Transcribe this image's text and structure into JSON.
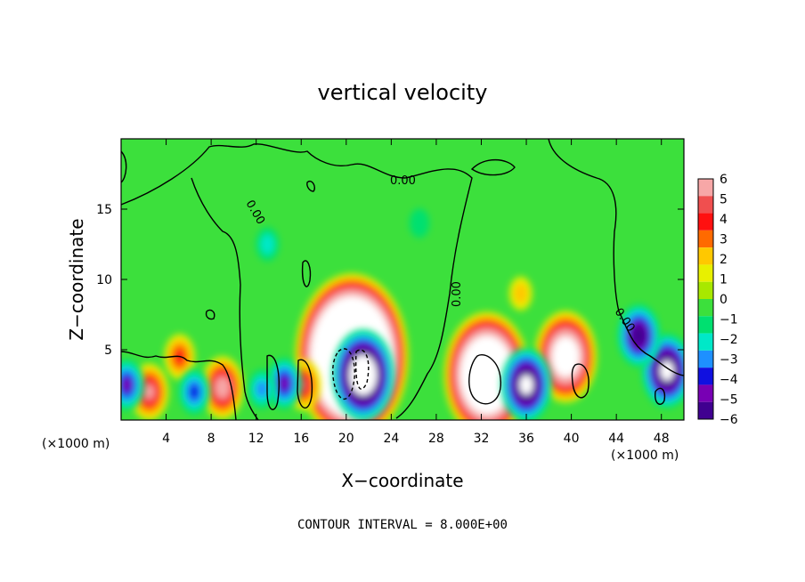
{
  "chart_data": {
    "type": "heatmap",
    "title": "vertical velocity",
    "xlabel": "X−coordinate",
    "ylabel": "Z−coordinate",
    "x_unit": "(×1000 m)",
    "x_unit_right": "(×1000 m)",
    "xlim": [
      0,
      50
    ],
    "ylim": [
      0,
      20
    ],
    "x_ticks": [
      4,
      8,
      12,
      16,
      20,
      24,
      28,
      32,
      36,
      40,
      44,
      48
    ],
    "y_ticks": [
      5,
      10,
      15
    ],
    "colorbar": {
      "labels": [
        "6",
        "5",
        "4",
        "3",
        "2",
        "1",
        "0",
        "−1",
        "−2",
        "−3",
        "−4",
        "−5",
        "−6"
      ],
      "levels": [
        6,
        5,
        4,
        3,
        2,
        1,
        0,
        -1,
        -2,
        -3,
        -4,
        -5,
        -6
      ],
      "colors": [
        "#f7a7a7",
        "#f04f4f",
        "#ff1010",
        "#ff6a00",
        "#ffc800",
        "#e8f000",
        "#a8e800",
        "#3ce03c",
        "#00e070",
        "#00e8c8",
        "#1e90ff",
        "#1010e0",
        "#7800b4",
        "#400090"
      ]
    },
    "contour_labels": [
      "0.00",
      "0.00",
      "0.00",
      "0.00"
    ],
    "footer": "CONTOUR INTERVAL = 8.000E+00",
    "features": [
      {
        "x": 20.5,
        "z": 4.5,
        "w": 25
      },
      {
        "x": 32.5,
        "z": 3.2,
        "w": 18
      },
      {
        "x": 39.5,
        "z": 4.5,
        "w": 12
      },
      {
        "x": 21.5,
        "z": 3.2,
        "w": -12
      },
      {
        "x": 36,
        "z": 2.5,
        "w": -9
      },
      {
        "x": 48.5,
        "z": 3.5,
        "w": -9
      },
      {
        "x": 46,
        "z": 6,
        "w": -7
      },
      {
        "x": 2.5,
        "z": 2,
        "w": 6
      },
      {
        "x": 9,
        "z": 2.3,
        "w": 7
      },
      {
        "x": 16.2,
        "z": 2.5,
        "w": 5
      },
      {
        "x": 5.2,
        "z": 4.5,
        "w": 4
      },
      {
        "x": 14.5,
        "z": 2.6,
        "w": -5
      },
      {
        "x": 12.5,
        "z": 2.2,
        "w": -3
      },
      {
        "x": 0.5,
        "z": 2.5,
        "w": -5
      },
      {
        "x": 6.5,
        "z": 2,
        "w": -4
      },
      {
        "x": 35.5,
        "z": 9,
        "w": 2
      },
      {
        "x": 13,
        "z": 12.5,
        "w": -2
      },
      {
        "x": 26.5,
        "z": 14,
        "w": -1.2
      }
    ]
  }
}
